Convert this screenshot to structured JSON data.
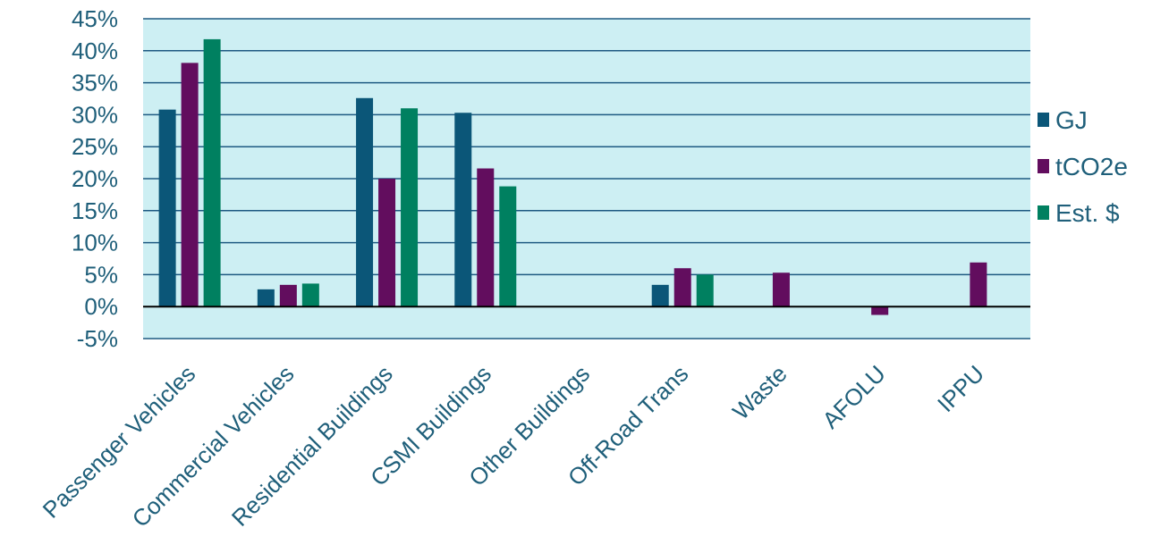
{
  "chart_data": {
    "type": "bar",
    "categories": [
      "Passenger Vehicles",
      "Commercial Vehicles",
      "Residential Buildings",
      "CSMI Buildings",
      "Other Buildings",
      "Off-Road Trans",
      "Waste",
      "AFOLU",
      "IPPU"
    ],
    "series": [
      {
        "name": "GJ",
        "color": "#0b5678",
        "values": [
          30.8,
          2.7,
          32.6,
          30.3,
          0,
          3.4,
          0,
          0,
          0
        ]
      },
      {
        "name": "tCO2e",
        "color": "#620d5e",
        "values": [
          38.1,
          3.4,
          20.0,
          21.6,
          0,
          6.0,
          5.3,
          -1.3,
          6.9
        ]
      },
      {
        "name": "Est. $",
        "color": "#008060",
        "values": [
          41.8,
          3.6,
          31.0,
          18.8,
          0,
          5.0,
          0,
          0,
          0
        ]
      }
    ],
    "ylim": [
      -5,
      45
    ],
    "yticks": [
      "-5%",
      "0%",
      "5%",
      "10%",
      "15%",
      "20%",
      "25%",
      "30%",
      "35%",
      "40%",
      "45%"
    ],
    "title": "",
    "xlabel": "",
    "ylabel": "",
    "grid": true,
    "legend_position": "right",
    "plot_background": "#cdeff3",
    "gridline_color": "#1e5a82"
  }
}
